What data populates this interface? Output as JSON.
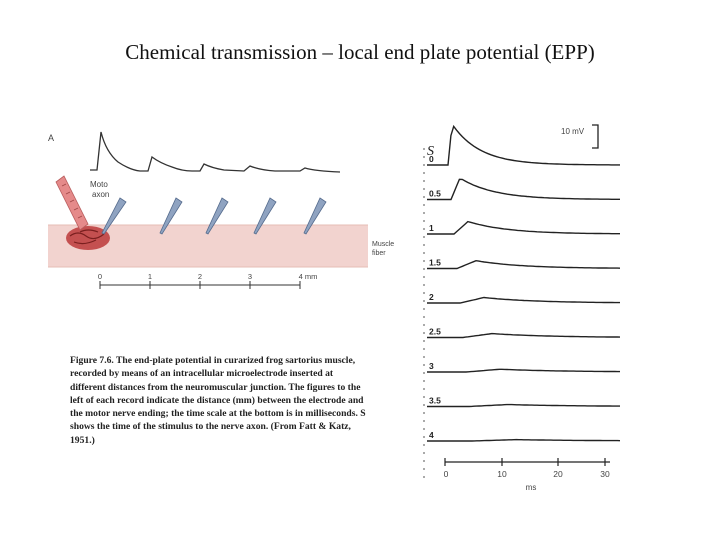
{
  "title": "Chemical transmission – local end plate potential (EPP)",
  "panel_a": {
    "panel_label": "A",
    "motor_axon_label": "Motor axon",
    "muscle_fiber_label": "Muscle fiber",
    "distance_ticks": [
      "0",
      "1",
      "2",
      "3",
      "4 mm"
    ]
  },
  "caption": "Figure 7.6. The end-plate potential in curarized frog sartorius muscle, recorded by means of an intracellular microelectrode inserted at different distances from the neuromuscular junction. The figures to the left of each record indicate the distance (mm) between the electrode and the motor nerve ending; the time scale at the bottom is in milliseconds. S shows the time of the stimulus to the nerve axon. (From Fatt & Katz, 1951.)",
  "traces": {
    "stimulus_label": "S",
    "scale_bar_label": "10 mV",
    "distances": [
      "0",
      "0.5",
      "1",
      "1.5",
      "2",
      "2.5",
      "3",
      "3.5",
      "4"
    ],
    "peak_mv": [
      10.5,
      5.5,
      3.2,
      2.0,
      1.4,
      1.0,
      0.7,
      0.5,
      0.35
    ],
    "time_ticks": [
      "0",
      "10",
      "20",
      "30"
    ],
    "time_unit": "ms"
  },
  "colors": {
    "muscle_fiber": "#f2d3cf",
    "motor_end_plate": "#b03a3a",
    "axon": "#e58a8a",
    "electrode": "#6f86a8",
    "ink": "#333333"
  }
}
